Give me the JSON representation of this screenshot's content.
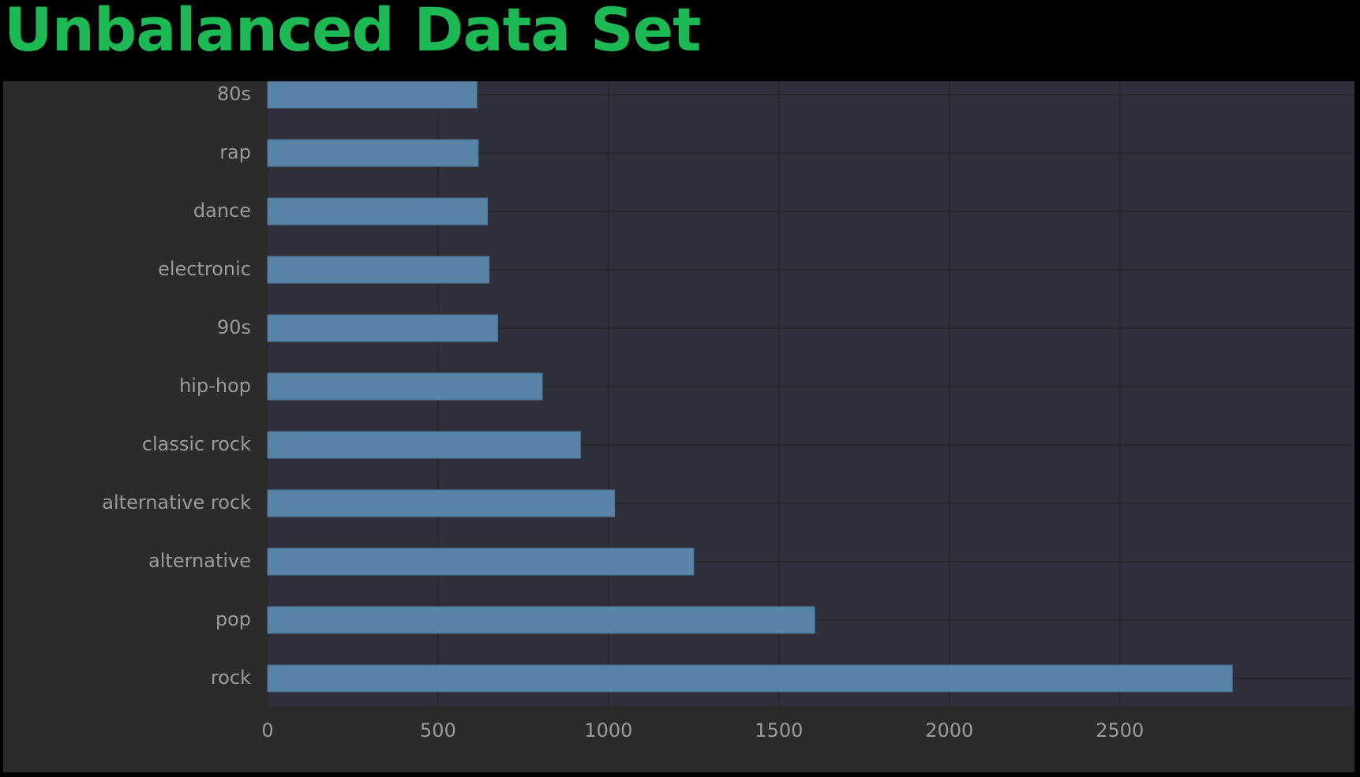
{
  "slide": {
    "title": "Unbalanced Data Set"
  },
  "colors": {
    "title": "#1db954",
    "page_background": "#000000",
    "panel_background": "#2b2b2b",
    "plot_background": "#30303c",
    "bar_fill": "#5a83a8",
    "bar_stroke": "#4a6f90",
    "grid": "#262628",
    "label": "#9b9b9b"
  },
  "chart_data": {
    "type": "bar",
    "orientation": "horizontal",
    "categories": [
      "rock",
      "pop",
      "alternative",
      "alternative rock",
      "classic rock",
      "hip-hop",
      "90s",
      "electronic",
      "dance",
      "rap",
      "80s"
    ],
    "values": [
      2830,
      1605,
      1250,
      1018,
      918,
      806,
      675,
      650,
      645,
      618,
      614
    ],
    "title": "",
    "xlabel": "",
    "ylabel": "",
    "xlim": [
      0,
      2900
    ],
    "xticks": [
      0,
      500,
      1000,
      1500,
      2000,
      2500
    ],
    "grid": true,
    "legend": "none"
  }
}
